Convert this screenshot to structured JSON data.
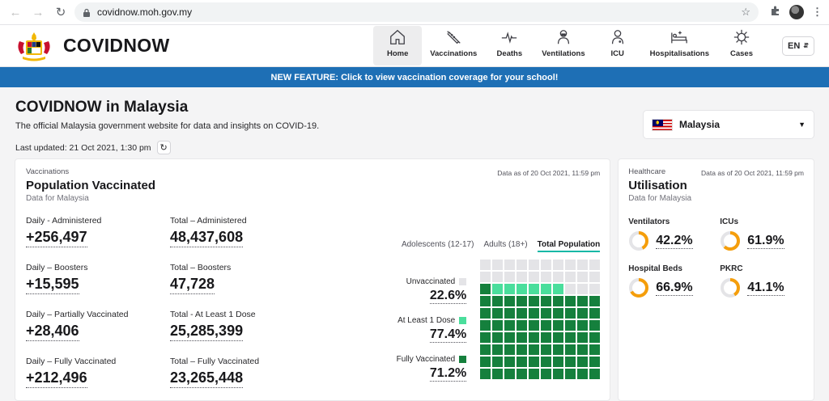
{
  "browser": {
    "url": "covidnow.moh.gov.my"
  },
  "header": {
    "brand": "COVIDNOW",
    "nav": [
      {
        "label": "Home",
        "icon": "home-icon",
        "active": true
      },
      {
        "label": "Vaccinations",
        "icon": "syringe-icon",
        "active": false
      },
      {
        "label": "Deaths",
        "icon": "pulse-icon",
        "active": false
      },
      {
        "label": "Ventilations",
        "icon": "ventilator-icon",
        "active": false
      },
      {
        "label": "ICU",
        "icon": "doctor-icon",
        "active": false
      },
      {
        "label": "Hospitalisations",
        "icon": "hospital-bed-icon",
        "active": false
      },
      {
        "label": "Cases",
        "icon": "virus-icon",
        "active": false
      }
    ],
    "language": "EN"
  },
  "banner": {
    "text": "NEW FEATURE: Click to view vaccination coverage for your school!"
  },
  "intro": {
    "title": "COVIDNOW in Malaysia",
    "description": "The official Malaysia government website for data and insights on COVID-19.",
    "last_updated": "Last updated: 21 Oct 2021, 1:30 pm",
    "country": "Malaysia"
  },
  "vaccinations": {
    "category": "Vaccinations",
    "title": "Population Vaccinated",
    "subtitle": "Data for Malaysia",
    "as_of": "Data as of 20 Oct 2021, 11:59 pm",
    "stats": [
      {
        "label": "Daily - Administered",
        "value": "+256,497"
      },
      {
        "label": "Total – Administered",
        "value": "48,437,608"
      },
      {
        "label": "Daily – Boosters",
        "value": "+15,595"
      },
      {
        "label": "Total – Boosters",
        "value": "47,728"
      },
      {
        "label": "Daily – Partially Vaccinated",
        "value": "+28,406"
      },
      {
        "label": "Total - At Least 1 Dose",
        "value": "25,285,399"
      },
      {
        "label": "Daily – Fully Vaccinated",
        "value": "+212,496"
      },
      {
        "label": "Total – Fully Vaccinated",
        "value": "23,265,448"
      }
    ],
    "tabs": [
      "Adolescents (12-17)",
      "Adults (18+)",
      "Total Population"
    ],
    "active_tab": "Total Population",
    "legend": [
      {
        "label": "Unvaccinated",
        "pct": "22.6%",
        "color": "#e4e4e7"
      },
      {
        "label": "At Least 1 Dose",
        "pct": "77.4%",
        "color": "#4ade9c"
      },
      {
        "label": "Fully Vaccinated",
        "pct": "71.2%",
        "color": "#15803d"
      }
    ],
    "waffle": {
      "unvaccinated": 22.6,
      "at_least_1_dose": 77.4,
      "fully_vaccinated": 71.2
    }
  },
  "utilisation": {
    "category": "Healthcare",
    "title": "Utilisation",
    "subtitle": "Data for Malaysia",
    "as_of": "Data as of 20 Oct 2021, 11:59 pm",
    "items": [
      {
        "label": "Ventilators",
        "value": "42.2%",
        "pct": 42.2,
        "color": "#f59e0b"
      },
      {
        "label": "ICUs",
        "value": "61.9%",
        "pct": 61.9,
        "color": "#f59e0b"
      },
      {
        "label": "Hospital Beds",
        "value": "66.9%",
        "pct": 66.9,
        "color": "#f59e0b"
      },
      {
        "label": "PKRC",
        "value": "41.1%",
        "pct": 41.1,
        "color": "#f59e0b"
      }
    ]
  }
}
